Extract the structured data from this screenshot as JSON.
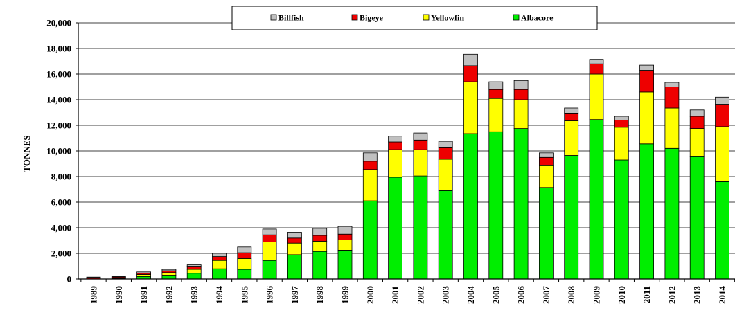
{
  "chart_data": {
    "type": "bar",
    "stacked": true,
    "title": "",
    "xlabel": "",
    "ylabel": "TONNES",
    "ylim": [
      0,
      20000
    ],
    "yticks": [
      "0",
      "2,000",
      "4,000",
      "6,000",
      "8,000",
      "10,000",
      "12,000",
      "14,000",
      "16,000",
      "18,000",
      "20,000"
    ],
    "ytick_values": [
      0,
      2000,
      4000,
      6000,
      8000,
      10000,
      12000,
      14000,
      16000,
      18000,
      20000
    ],
    "grid": true,
    "legend_placement": "top",
    "categories": [
      "1989",
      "1990",
      "1991",
      "1992",
      "1993",
      "1994",
      "1995",
      "1996",
      "1997",
      "1998",
      "1999",
      "2000",
      "2001",
      "2002",
      "2003",
      "2004",
      "2005",
      "2006",
      "2007",
      "2008",
      "2009",
      "2010",
      "2011",
      "2012",
      "2013",
      "2014"
    ],
    "series": [
      {
        "name": "Albacore",
        "color": "#00ee00",
        "values": [
          0,
          50,
          200,
          300,
          450,
          800,
          750,
          1450,
          1900,
          2150,
          2250,
          6100,
          7950,
          8050,
          6900,
          11350,
          11500,
          11750,
          7150,
          9650,
          12450,
          9300,
          10550,
          10200,
          9550,
          7600
        ]
      },
      {
        "name": "Yellowfin",
        "color": "#ffff00",
        "values": [
          0,
          0,
          150,
          200,
          300,
          650,
          850,
          1450,
          900,
          800,
          800,
          2450,
          2150,
          2050,
          2450,
          4050,
          2600,
          2250,
          1700,
          2700,
          3550,
          2550,
          4050,
          3150,
          2200,
          4300
        ]
      },
      {
        "name": "Bigeye",
        "color": "#ee0000",
        "values": [
          100,
          100,
          100,
          150,
          250,
          300,
          450,
          550,
          400,
          450,
          450,
          650,
          600,
          750,
          900,
          1250,
          700,
          800,
          650,
          600,
          800,
          550,
          1700,
          1650,
          950,
          1750
        ]
      },
      {
        "name": "Billfish",
        "color": "#c0c0c0",
        "values": [
          50,
          50,
          100,
          100,
          100,
          250,
          450,
          450,
          450,
          550,
          600,
          650,
          450,
          550,
          500,
          900,
          600,
          700,
          350,
          400,
          350,
          300,
          400,
          350,
          500,
          550
        ]
      }
    ],
    "legend_order": [
      "Billfish",
      "Bigeye",
      "Yellowfin",
      "Albacore"
    ]
  }
}
